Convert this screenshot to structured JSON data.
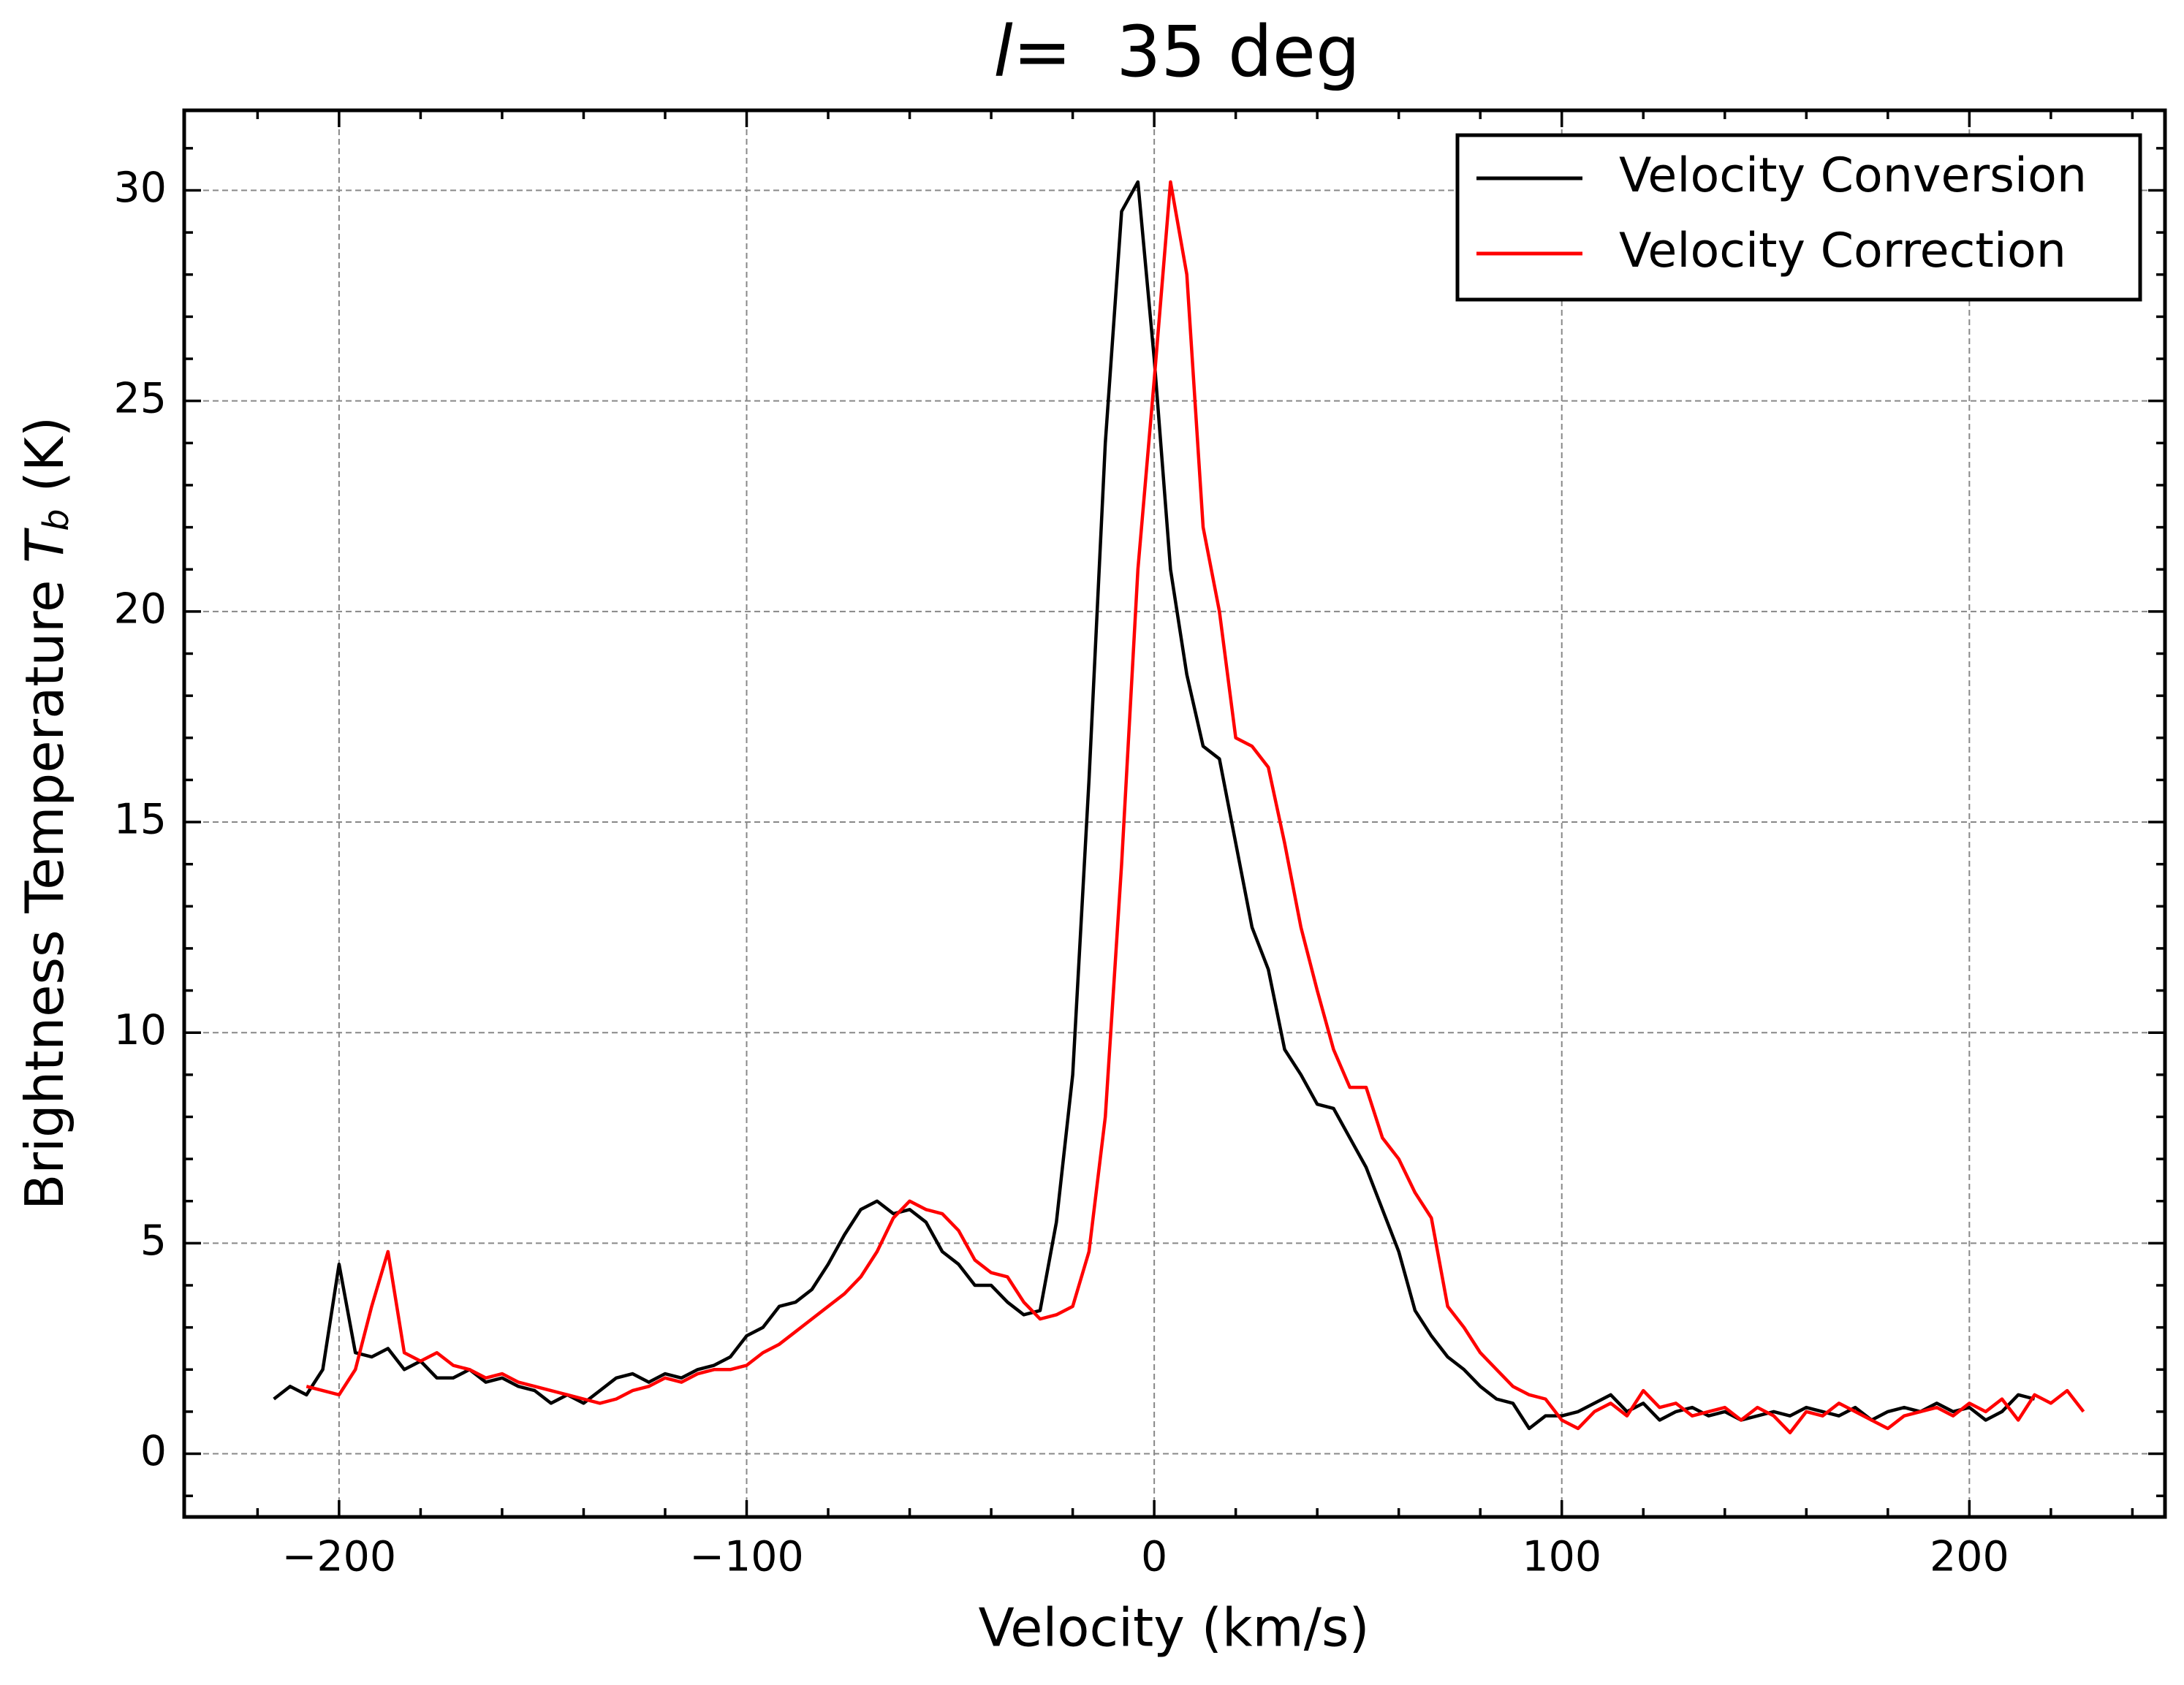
{
  "chart_data": {
    "type": "line",
    "title": [
      "l",
      "=  35 deg"
    ],
    "xlabel": "Velocity (km/s)",
    "ylabel": [
      "Brightness Temperature ",
      "T",
      "b",
      " (K)"
    ],
    "x": [
      -216,
      -212,
      -208,
      -204,
      -200,
      -196,
      -192,
      -188,
      -184,
      -180,
      -176,
      -172,
      -168,
      -164,
      -160,
      -156,
      -152,
      -148,
      -144,
      -140,
      -136,
      -132,
      -128,
      -124,
      -120,
      -116,
      -112,
      -108,
      -104,
      -100,
      -96,
      -92,
      -88,
      -84,
      -80,
      -76,
      -72,
      -68,
      -64,
      -60,
      -56,
      -52,
      -48,
      -44,
      -40,
      -36,
      -32,
      -28,
      -24,
      -20,
      -16,
      -12,
      -8,
      -4,
      0,
      4,
      8,
      12,
      16,
      20,
      24,
      28,
      32,
      36,
      40,
      44,
      48,
      52,
      56,
      60,
      64,
      68,
      72,
      76,
      80,
      84,
      88,
      92,
      96,
      100,
      104,
      108,
      112,
      116,
      120,
      124,
      128,
      132,
      136,
      140,
      144,
      148,
      152,
      156,
      160,
      164,
      168,
      172,
      176,
      180,
      184,
      188,
      192,
      196,
      200,
      204,
      208,
      212,
      216,
      220,
      224,
      228
    ],
    "series": [
      {
        "name": "Velocity Conversion",
        "color": "#000000",
        "values": [
          1.3,
          1.6,
          1.4,
          2.0,
          4.5,
          2.4,
          2.3,
          2.5,
          2.0,
          2.2,
          1.8,
          1.8,
          2.0,
          1.7,
          1.8,
          1.6,
          1.5,
          1.2,
          1.4,
          1.2,
          1.5,
          1.8,
          1.9,
          1.7,
          1.9,
          1.8,
          2.0,
          2.1,
          2.3,
          2.8,
          3.0,
          3.5,
          3.6,
          3.9,
          4.5,
          5.2,
          5.8,
          6.0,
          5.7,
          5.8,
          5.5,
          4.8,
          4.5,
          4.0,
          4.0,
          3.6,
          3.3,
          3.4,
          5.5,
          9,
          16,
          24,
          29.5,
          30.2,
          26,
          21,
          18.5,
          16.8,
          16.5,
          14.5,
          12.5,
          11.5,
          9.6,
          9.0,
          8.3,
          8.2,
          7.5,
          6.8,
          5.8,
          4.8,
          3.4,
          2.8,
          2.3,
          2.0,
          1.6,
          1.3,
          1.2,
          0.6,
          0.9,
          0.9,
          1.0,
          1.2,
          1.4,
          1.0,
          1.2,
          0.8,
          1.0,
          1.1,
          0.9,
          1.0,
          0.8,
          0.9,
          1.0,
          0.9,
          1.1,
          1.0,
          0.9,
          1.1,
          0.8,
          1.0,
          1.1,
          1.0,
          1.2,
          1.0,
          1.1,
          0.8,
          1.0,
          1.4,
          1.3,
          null,
          null,
          null
        ]
      },
      {
        "name": "Velocity Correction",
        "color": "#ff0000",
        "values": [
          null,
          null,
          1.6,
          1.5,
          1.4,
          2.0,
          3.5,
          4.8,
          2.4,
          2.2,
          2.4,
          2.1,
          2.0,
          1.8,
          1.9,
          1.7,
          1.6,
          1.5,
          1.4,
          1.3,
          1.2,
          1.3,
          1.5,
          1.6,
          1.8,
          1.7,
          1.9,
          2.0,
          2.0,
          2.1,
          2.4,
          2.6,
          2.9,
          3.2,
          3.5,
          3.8,
          4.2,
          4.8,
          5.6,
          6.0,
          5.8,
          5.7,
          5.3,
          4.6,
          4.3,
          4.2,
          3.6,
          3.2,
          3.3,
          3.5,
          4.8,
          8,
          14,
          21,
          25.5,
          30.2,
          28,
          22,
          20,
          17,
          16.8,
          16.3,
          14.5,
          12.5,
          11.0,
          9.6,
          8.7,
          8.7,
          7.5,
          7.0,
          6.2,
          5.6,
          3.5,
          3.0,
          2.4,
          2.0,
          1.6,
          1.4,
          1.3,
          0.8,
          0.6,
          1.0,
          1.2,
          0.9,
          1.5,
          1.1,
          1.2,
          0.9,
          1.0,
          1.1,
          0.8,
          1.1,
          0.9,
          0.5,
          1.0,
          0.9,
          1.2,
          1.0,
          0.8,
          0.6,
          0.9,
          1.0,
          1.1,
          0.9,
          1.2,
          1.0,
          1.3,
          0.8,
          1.4,
          1.2,
          1.5,
          1.0
        ]
      }
    ],
    "xlim": [
      -238,
      248
    ],
    "ylim": [
      -1.5,
      31.9
    ],
    "xticks": [
      {
        "value": -200,
        "label": "−200"
      },
      {
        "value": -100,
        "label": "−100"
      },
      0,
      100,
      200
    ],
    "yticks": [
      0,
      5,
      10,
      15,
      20,
      25,
      30
    ],
    "xticks_minor": [
      -220,
      -180,
      -160,
      -140,
      -120,
      -80,
      -60,
      -40,
      -20,
      20,
      40,
      60,
      80,
      120,
      140,
      160,
      180,
      220,
      240
    ],
    "yticks_minor": [
      -1,
      1,
      2,
      3,
      4,
      6,
      7,
      8,
      9,
      11,
      12,
      13,
      14,
      16,
      17,
      18,
      19,
      21,
      22,
      23,
      24,
      26,
      27,
      28,
      29,
      31
    ],
    "grid": true,
    "legend": "upper right"
  }
}
